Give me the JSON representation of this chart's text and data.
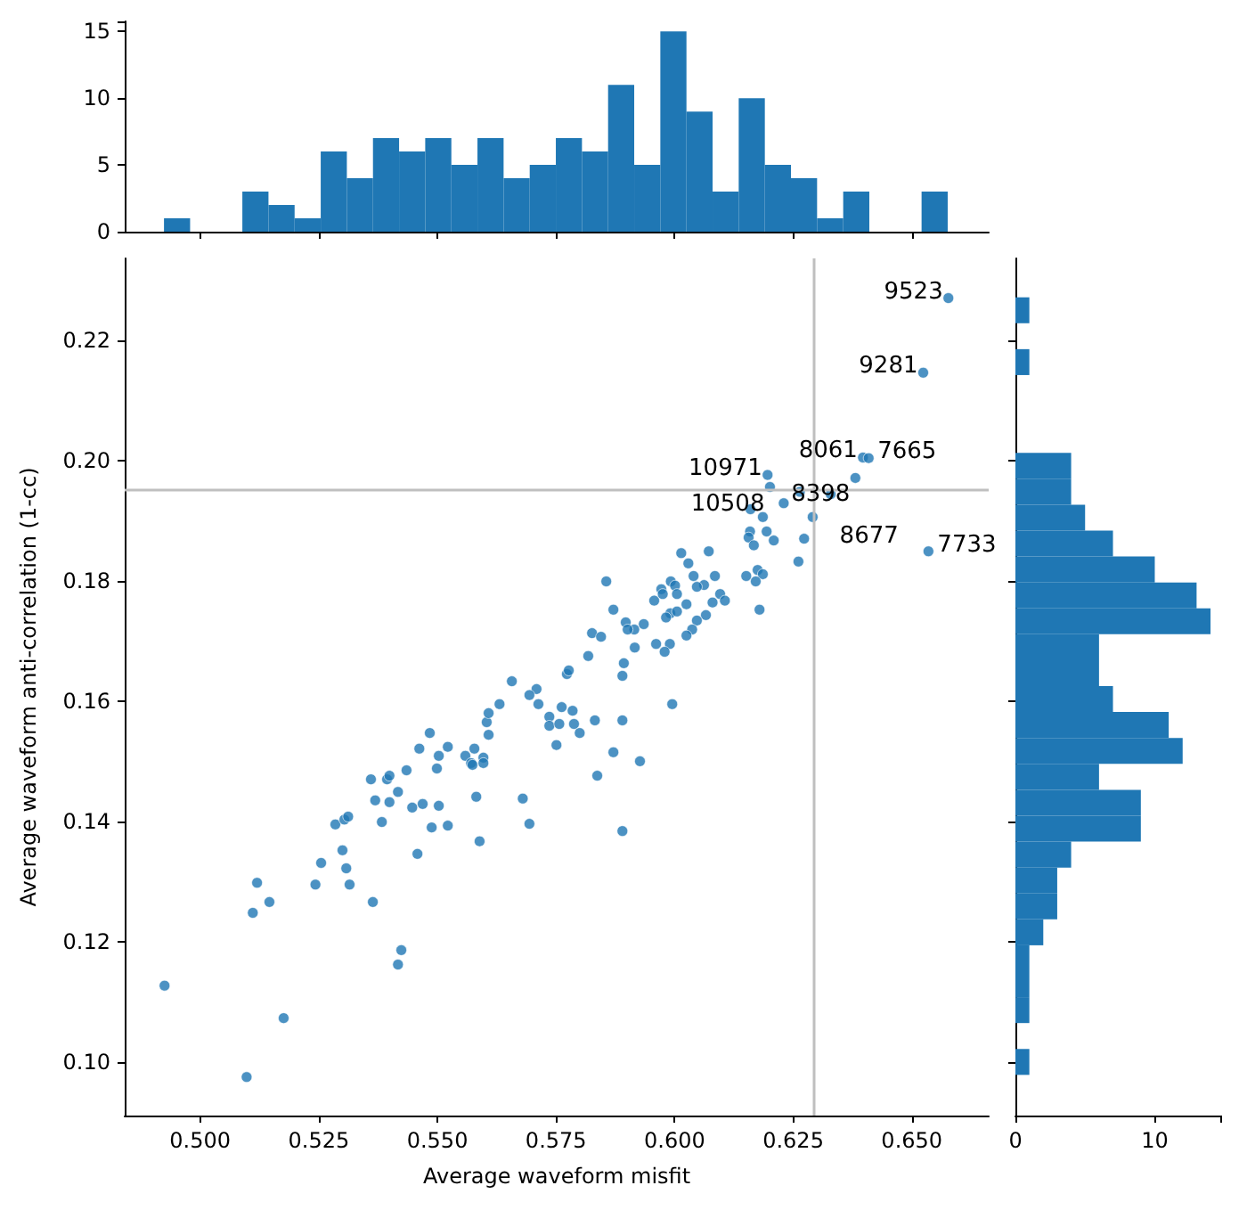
{
  "chart_data": [
    {
      "type": "histogram",
      "color": "#1f77b4",
      "tick_labels": "y",
      "bins": [
        0.49238,
        0.497886,
        0.503392,
        0.508898,
        0.514404,
        0.51991,
        0.525416,
        0.530922,
        0.536428,
        0.541934,
        0.54744,
        0.552946,
        0.558452,
        0.563958,
        0.569464,
        0.57497,
        0.580476,
        0.585982,
        0.591488,
        0.596994,
        0.6025,
        0.608006,
        0.613512,
        0.619018,
        0.624524,
        0.63003,
        0.635536,
        0.641042,
        0.646548,
        0.652054,
        0.65756
      ],
      "values": [
        1,
        0,
        0,
        3,
        2,
        1,
        6,
        4,
        7,
        6,
        7,
        5,
        7,
        4,
        5,
        7,
        6,
        11,
        5,
        15,
        9,
        3,
        10,
        5,
        4,
        1,
        3,
        0,
        0,
        3
      ],
      "xlim": [
        0.4841,
        0.6662
      ],
      "xticks": [
        {
          "value": 0.5,
          "label": null
        },
        {
          "value": 0.525,
          "label": null
        },
        {
          "value": 0.55,
          "label": null
        },
        {
          "value": 0.575,
          "label": null
        },
        {
          "value": 0.6,
          "label": null
        },
        {
          "value": 0.625,
          "label": null
        },
        {
          "value": 0.65,
          "label": null
        }
      ],
      "ylim": [
        0,
        15.75
      ],
      "yticks": [
        0,
        5,
        10,
        15
      ]
    },
    {
      "type": "scatter",
      "color": "#1f77b4",
      "marker": "circle",
      "xlabel": "Average waveform misfit",
      "ylabel": "Average waveform anti-correlation (1-cc)",
      "xlim": [
        0.4841,
        0.6662
      ],
      "xticks": [
        {
          "value": 0.5,
          "label": "0.500"
        },
        {
          "value": 0.525,
          "label": "0.525"
        },
        {
          "value": 0.55,
          "label": "0.550"
        },
        {
          "value": 0.575,
          "label": "0.575"
        },
        {
          "value": 0.6,
          "label": "0.600"
        },
        {
          "value": 0.625,
          "label": "0.625"
        },
        {
          "value": 0.65,
          "label": "0.650"
        }
      ],
      "ylim": [
        0.0911,
        0.2336
      ],
      "yticks": [
        {
          "value": 0.1,
          "label": "0.10"
        },
        {
          "value": 0.12,
          "label": "0.12"
        },
        {
          "value": 0.14,
          "label": "0.14"
        },
        {
          "value": 0.16,
          "label": "0.16"
        },
        {
          "value": 0.18,
          "label": "0.18"
        },
        {
          "value": 0.2,
          "label": "0.20"
        },
        {
          "value": 0.22,
          "label": "0.22"
        }
      ],
      "x": [
        0.6577,
        0.6524,
        0.6397,
        0.6409,
        0.6381,
        0.6196,
        0.6201,
        0.6329,
        0.6535,
        0.6264,
        0.623,
        0.616,
        0.6186,
        0.6291,
        0.6159,
        0.6194,
        0.6156,
        0.6273,
        0.6209,
        0.6167,
        0.6261,
        0.6072,
        0.6014,
        0.6029,
        0.604,
        0.6085,
        0.6151,
        0.6175,
        0.6186,
        0.6171,
        0.5992,
        0.6001,
        0.5972,
        0.5975,
        0.6005,
        0.6062,
        0.6047,
        0.5856,
        0.5871,
        0.5957,
        0.6025,
        0.608,
        0.6096,
        0.6106,
        0.6179,
        0.5991,
        0.5982,
        0.6005,
        0.6066,
        0.6047,
        0.5897,
        0.5915,
        0.5901,
        0.5935,
        0.5826,
        0.5845,
        0.6037,
        0.6025,
        0.5916,
        0.5961,
        0.599,
        0.5979,
        0.5818,
        0.5893,
        0.5773,
        0.5777,
        0.589,
        0.5709,
        0.5995,
        0.5762,
        0.5785,
        0.5736,
        0.5736,
        0.5757,
        0.5788,
        0.58,
        0.5832,
        0.589,
        0.5751,
        0.5871,
        0.5927,
        0.5837,
        0.589,
        0.4925,
        0.5098,
        0.5176,
        0.5111,
        0.512,
        0.5146,
        0.5243,
        0.5255,
        0.53,
        0.5308,
        0.5315,
        0.5285,
        0.5304,
        0.5312,
        0.5364,
        0.5417,
        0.5424,
        0.536,
        0.5369,
        0.5383,
        0.5394,
        0.5399,
        0.5399,
        0.5417,
        0.5435,
        0.5447,
        0.5458,
        0.5462,
        0.5469,
        0.5484,
        0.5488,
        0.5499,
        0.5503,
        0.5503,
        0.5522,
        0.5522,
        0.5559,
        0.5571,
        0.5578,
        0.5574,
        0.5582,
        0.5589,
        0.5597,
        0.5597,
        0.5604,
        0.5608,
        0.5608,
        0.5631,
        0.568,
        0.5694,
        0.5694,
        0.5713,
        0.5657
      ],
      "values": [
        0.227,
        0.2146,
        0.2005,
        0.2004,
        0.1971,
        0.1976,
        0.1956,
        0.1944,
        0.1849,
        0.1948,
        0.1929,
        0.1919,
        0.1906,
        0.1906,
        0.1882,
        0.1882,
        0.1872,
        0.187,
        0.1867,
        0.1859,
        0.1832,
        0.1849,
        0.1846,
        0.1829,
        0.1808,
        0.1808,
        0.1808,
        0.1818,
        0.1811,
        0.1799,
        0.1799,
        0.1792,
        0.1786,
        0.1778,
        0.1778,
        0.1793,
        0.179,
        0.1799,
        0.1752,
        0.1767,
        0.1761,
        0.1764,
        0.1778,
        0.1767,
        0.1752,
        0.1746,
        0.1739,
        0.1749,
        0.1743,
        0.1734,
        0.1731,
        0.1719,
        0.1719,
        0.1728,
        0.1713,
        0.1707,
        0.1719,
        0.1709,
        0.1689,
        0.1695,
        0.1695,
        0.1682,
        0.1675,
        0.1663,
        0.1645,
        0.1651,
        0.1642,
        0.162,
        0.1595,
        0.159,
        0.1584,
        0.1574,
        0.1559,
        0.1562,
        0.1562,
        0.1547,
        0.1568,
        0.1568,
        0.1527,
        0.1515,
        0.15,
        0.1476,
        0.1384,
        0.1127,
        0.0975,
        0.1073,
        0.1248,
        0.1298,
        0.1266,
        0.1295,
        0.1331,
        0.1352,
        0.1322,
        0.1295,
        0.1395,
        0.1403,
        0.1408,
        0.1266,
        0.1162,
        0.1186,
        0.147,
        0.1435,
        0.1399,
        0.147,
        0.1476,
        0.1432,
        0.1449,
        0.1485,
        0.1423,
        0.1346,
        0.1521,
        0.1429,
        0.1547,
        0.139,
        0.1488,
        0.1509,
        0.1426,
        0.1524,
        0.1393,
        0.1509,
        0.1497,
        0.1521,
        0.1494,
        0.1441,
        0.1367,
        0.1506,
        0.1497,
        0.1565,
        0.158,
        0.1544,
        0.1595,
        0.1438,
        0.1396,
        0.161,
        0.1595,
        0.1633
      ],
      "ref_lines": [
        {
          "axis": "x",
          "value": 0.6294,
          "color": "#bfbfbf"
        },
        {
          "axis": "y",
          "value": 0.1951,
          "color": "#bfbfbf"
        }
      ],
      "annotations": [
        {
          "text": "9523",
          "x": 0.6577,
          "y": 0.227
        },
        {
          "text": "9281",
          "x": 0.6524,
          "y": 0.2146
        },
        {
          "text": "8061",
          "x": 0.6397,
          "y": 0.2005
        },
        {
          "text": "7665",
          "x": 0.6409,
          "y": 0.2004
        },
        {
          "text": "8398",
          "x": 0.6381,
          "y": 0.1971
        },
        {
          "text": "10971",
          "x": 0.6196,
          "y": 0.1976
        },
        {
          "text": "10508",
          "x": 0.6201,
          "y": 0.1956
        },
        {
          "text": "8677",
          "x": 0.6329,
          "y": 0.1944
        },
        {
          "text": "7733",
          "x": 0.6535,
          "y": 0.1849
        }
      ]
    },
    {
      "type": "histogram",
      "orientation": "horizontal",
      "color": "#1f77b4",
      "tick_labels": "x",
      "bins": [
        0.09786,
        0.102169,
        0.106478,
        0.110787,
        0.115096,
        0.119405,
        0.123714,
        0.128023,
        0.132332,
        0.136641,
        0.14095,
        0.145259,
        0.149568,
        0.153877,
        0.158186,
        0.162495,
        0.166804,
        0.171113,
        0.175422,
        0.179731,
        0.18404,
        0.188349,
        0.192658,
        0.196967,
        0.201276,
        0.205585,
        0.209894,
        0.214203,
        0.218512,
        0.222821,
        0.22713
      ],
      "values": [
        1,
        0,
        1,
        1,
        1,
        2,
        3,
        3,
        4,
        9,
        9,
        6,
        12,
        11,
        7,
        6,
        6,
        14,
        13,
        10,
        7,
        5,
        4,
        4,
        0,
        0,
        0,
        1,
        0,
        1
      ],
      "xlim": [
        0,
        14.7
      ],
      "xticks": [
        0,
        10
      ],
      "ylim": [
        0.0911,
        0.2336
      ],
      "yticks": [
        {
          "value": 0.1,
          "label": null
        },
        {
          "value": 0.12,
          "label": null
        },
        {
          "value": 0.14,
          "label": null
        },
        {
          "value": 0.16,
          "label": null
        },
        {
          "value": 0.18,
          "label": null
        },
        {
          "value": 0.2,
          "label": null
        },
        {
          "value": 0.22,
          "label": null
        }
      ]
    }
  ]
}
